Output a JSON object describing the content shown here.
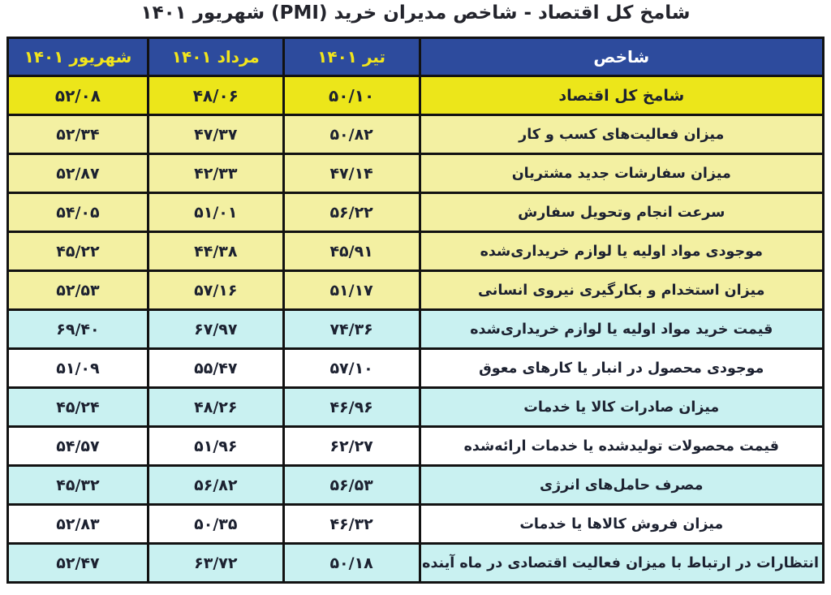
{
  "title": "شامخ کل اقتصاد - شاخص مدیران خرید (PMI) شهریور ۱۴۰۱",
  "table": {
    "headers": [
      "شاخص",
      "تیر ۱۴۰۱",
      "مرداد ۱۴۰۱",
      "شهریور ۱۴۰۱"
    ],
    "rows": [
      {
        "label": "شامخ کل اقتصاد",
        "values": [
          "۵۰/۱۰",
          "۴۸/۰۶",
          "۵۲/۰۸"
        ]
      },
      {
        "label": "میزان فعالیت‌های کسب و کار",
        "values": [
          "۵۰/۸۲",
          "۴۷/۳۷",
          "۵۲/۳۴"
        ]
      },
      {
        "label": "میزان سفارشات جدید مشتریان",
        "values": [
          "۴۷/۱۴",
          "۴۲/۳۳",
          "۵۲/۸۷"
        ]
      },
      {
        "label": "سرعت انجام وتحویل سفارش",
        "values": [
          "۵۶/۲۲",
          "۵۱/۰۱",
          "۵۴/۰۵"
        ]
      },
      {
        "label": "موجودی مواد اولیه یا لوازم خریداری‌شده",
        "values": [
          "۴۵/۹۱",
          "۴۴/۳۸",
          "۴۵/۲۲"
        ]
      },
      {
        "label": "میزان استخدام و بکارگیری نیروی انسانی",
        "values": [
          "۵۱/۱۷",
          "۵۷/۱۶",
          "۵۲/۵۳"
        ]
      },
      {
        "label": "قیمت خرید مواد اولیه یا لوازم خریداری‌شده",
        "values": [
          "۷۴/۳۶",
          "۶۷/۹۷",
          "۶۹/۴۰"
        ]
      },
      {
        "label": "موجودی محصول در انبار یا کارهای معوق",
        "values": [
          "۵۷/۱۰",
          "۵۵/۴۷",
          "۵۱/۰۹"
        ]
      },
      {
        "label": "میزان صادرات کالا یا خدمات",
        "values": [
          "۴۶/۹۶",
          "۴۸/۲۶",
          "۴۵/۲۴"
        ]
      },
      {
        "label": "قیمت محصولات تولیدشده یا خدمات ارائه‌شده",
        "values": [
          "۶۲/۲۷",
          "۵۱/۹۶",
          "۵۴/۵۷"
        ]
      },
      {
        "label": "مصرف حامل‌های انرژی",
        "values": [
          "۵۶/۵۳",
          "۵۶/۸۲",
          "۴۵/۳۲"
        ]
      },
      {
        "label": "میزان فروش کالاها یا خدمات",
        "values": [
          "۴۶/۳۲",
          "۵۰/۳۵",
          "۵۲/۸۳"
        ]
      },
      {
        "label": "انتظارات در ارتباط با میزان فعالیت اقتصادی در ماه آینده",
        "values": [
          "۵۰/۱۸",
          "۶۳/۷۲",
          "۵۲/۴۷"
        ]
      }
    ]
  },
  "chart_data": {
    "type": "table",
    "title": "شامخ کل اقتصاد - شاخص مدیران خرید (PMI) شهریور ۱۴۰۱",
    "categories": [
      "شامخ کل اقتصاد",
      "میزان فعالیت‌های کسب و کار",
      "میزان سفارشات جدید مشتریان",
      "سرعت انجام وتحویل سفارش",
      "موجودی مواد اولیه یا لوازم خریداری‌شده",
      "میزان استخدام و بکارگیری نیروی انسانی",
      "قیمت خرید مواد اولیه یا لوازم خریداری‌شده",
      "موجودی محصول در انبار یا کارهای معوق",
      "میزان صادرات کالا یا خدمات",
      "قیمت محصولات تولیدشده یا خدمات ارائه‌شده",
      "مصرف حامل‌های انرژی",
      "میزان فروش کالاها یا خدمات",
      "انتظارات در ارتباط با میزان فعالیت اقتصادی در ماه آینده"
    ],
    "series": [
      {
        "name": "تیر ۱۴۰۱",
        "values": [
          50.1,
          50.82,
          47.14,
          56.22,
          45.91,
          51.17,
          74.36,
          57.1,
          46.96,
          62.27,
          56.53,
          46.32,
          50.18
        ]
      },
      {
        "name": "مرداد ۱۴۰۱",
        "values": [
          48.06,
          47.37,
          42.33,
          51.01,
          44.38,
          57.16,
          67.97,
          55.47,
          48.26,
          51.96,
          56.82,
          50.35,
          63.72
        ]
      },
      {
        "name": "شهریور ۱۴۰۱",
        "values": [
          52.08,
          52.34,
          52.87,
          54.05,
          45.22,
          52.53,
          69.4,
          51.09,
          45.24,
          54.57,
          45.32,
          52.83,
          52.47
        ]
      }
    ]
  },
  "colors": {
    "header-bg": "#2d4b9d",
    "header-month-text": "#f2e51c",
    "header-indicator-text": "#ffffff",
    "total-row-bg": "#ece61a",
    "pale-yellow-row-bg": "#f3f0a2",
    "cyan-row-bg": "#c9f1f1",
    "white-row-bg": "#ffffff",
    "cell-text": "#1c2130",
    "border": "#121212",
    "title-text": "#23242c"
  }
}
